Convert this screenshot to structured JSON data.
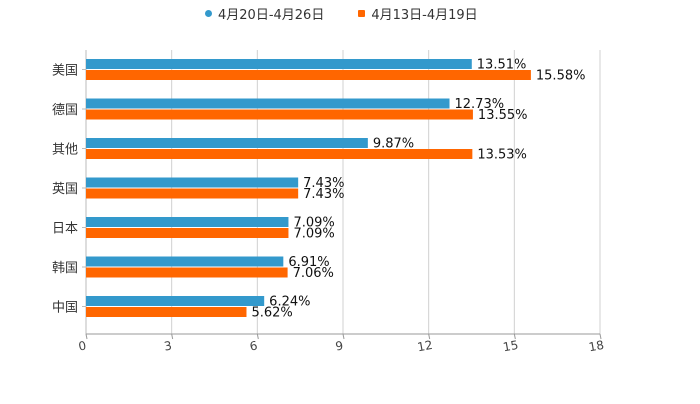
{
  "chart_data": {
    "type": "bar",
    "orientation": "horizontal",
    "categories": [
      "美国",
      "德国",
      "其他",
      "英国",
      "日本",
      "韩国",
      "中国"
    ],
    "series": [
      {
        "name": "4月20日-4月26日",
        "color": "#3399cc",
        "values": [
          13.51,
          12.73,
          9.87,
          7.43,
          7.09,
          6.91,
          6.24
        ],
        "labels": [
          "13.51%",
          "12.73%",
          "9.87%",
          "7.43%",
          "7.09%",
          "6.91%",
          "6.24%"
        ]
      },
      {
        "name": "4月13日-4月19日",
        "color": "#ff6600",
        "values": [
          15.58,
          13.55,
          13.53,
          7.43,
          7.09,
          7.06,
          5.62
        ],
        "labels": [
          "15.58%",
          "13.55%",
          "13.53%",
          "7.43%",
          "7.09%",
          "7.06%",
          "5.62%"
        ]
      }
    ],
    "xlim": [
      0,
      18
    ],
    "xticks": [
      0,
      3,
      6,
      9,
      12,
      15,
      18
    ],
    "xtick_labels": [
      "0",
      "3",
      "6",
      "9",
      "12",
      "15",
      "18"
    ],
    "grid": true,
    "legend": "top-center"
  }
}
